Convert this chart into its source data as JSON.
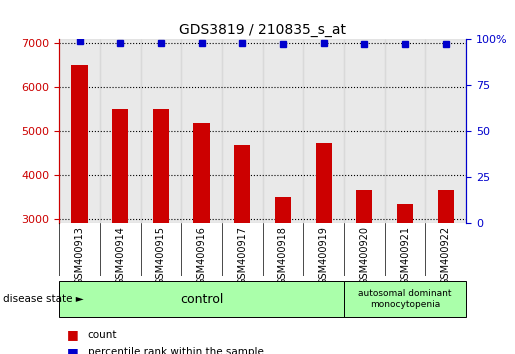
{
  "title": "GDS3819 / 210835_s_at",
  "categories": [
    "GSM400913",
    "GSM400914",
    "GSM400915",
    "GSM400916",
    "GSM400917",
    "GSM400918",
    "GSM400919",
    "GSM400920",
    "GSM400921",
    "GSM400922"
  ],
  "bar_values": [
    6500,
    5500,
    5500,
    5180,
    4680,
    3490,
    4720,
    3660,
    3340,
    3660
  ],
  "percentile_values": [
    99,
    98,
    98,
    98,
    98,
    97,
    98,
    97,
    97,
    97
  ],
  "bar_color": "#cc0000",
  "percentile_color": "#0000cc",
  "ylim_left": [
    2900,
    7100
  ],
  "ylim_right": [
    0,
    100
  ],
  "yticks_left": [
    3000,
    4000,
    5000,
    6000,
    7000
  ],
  "yticks_right": [
    0,
    25,
    50,
    75,
    100
  ],
  "control_label": "control",
  "disease_label": "autosomal dominant\nmonocytopenia",
  "disease_state_label": "disease state",
  "legend_count": "count",
  "legend_percentile": "percentile rank within the sample",
  "control_color": "#aaffaa",
  "disease_color": "#aaffaa",
  "bar_axis_color": "#cc0000",
  "right_axis_color": "#0000cc",
  "num_control": 7,
  "num_disease": 3,
  "col_bg_color": "#d4d4d4"
}
